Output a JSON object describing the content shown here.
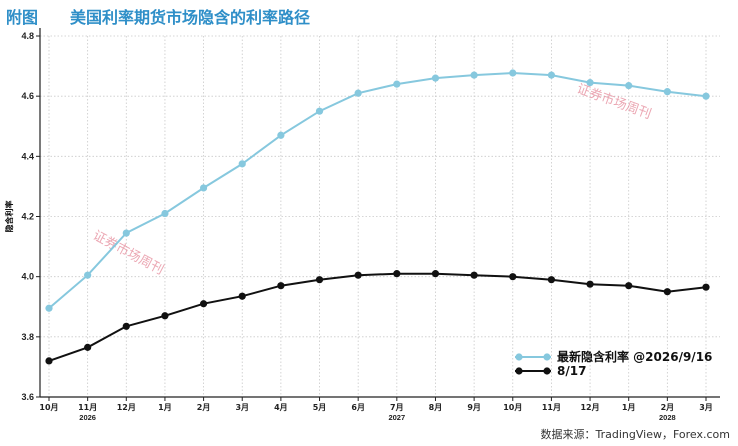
{
  "figure": {
    "title": "附图　　美国利率期货市场隐含的利率路径",
    "source": "数据来源：TradingView，Forex.com",
    "watermark": "证券市场周刊"
  },
  "chart_data": {
    "type": "line",
    "title": "附图　　美国利率期货市场隐含的利率路径",
    "ylabel": "隐含利率",
    "xlabel": "",
    "categories": [
      "10月",
      "11月",
      "12月",
      "1月",
      "2月",
      "3月",
      "4月",
      "5月",
      "6月",
      "7月",
      "8月",
      "9月",
      "10月",
      "11月",
      "12月",
      "1月",
      "2月",
      "3月"
    ],
    "year_labels": [
      {
        "index": 1,
        "label": "2026"
      },
      {
        "index": 9,
        "label": "2027"
      },
      {
        "index": 16,
        "label": "2028"
      }
    ],
    "ylim": [
      3.6,
      4.8
    ],
    "yticks": [
      "3.6",
      "3.8",
      "4.0",
      "4.2",
      "4.4",
      "4.6",
      "4.8"
    ],
    "grid": true,
    "legend_position": "bottom-right",
    "series": [
      {
        "name": "最新隐含利率 @2026/9/16",
        "color": "#86c8de",
        "values": [
          3.895,
          4.005,
          4.145,
          4.21,
          4.295,
          4.375,
          4.47,
          4.55,
          4.61,
          4.64,
          4.66,
          4.67,
          4.677,
          4.67,
          4.645,
          4.635,
          4.615,
          4.6
        ]
      },
      {
        "name": "8/17",
        "color": "#111111",
        "values": [
          3.72,
          3.765,
          3.835,
          3.87,
          3.91,
          3.935,
          3.97,
          3.99,
          4.005,
          4.01,
          4.01,
          4.005,
          4.0,
          3.99,
          3.975,
          3.97,
          3.95,
          3.965
        ]
      }
    ]
  }
}
